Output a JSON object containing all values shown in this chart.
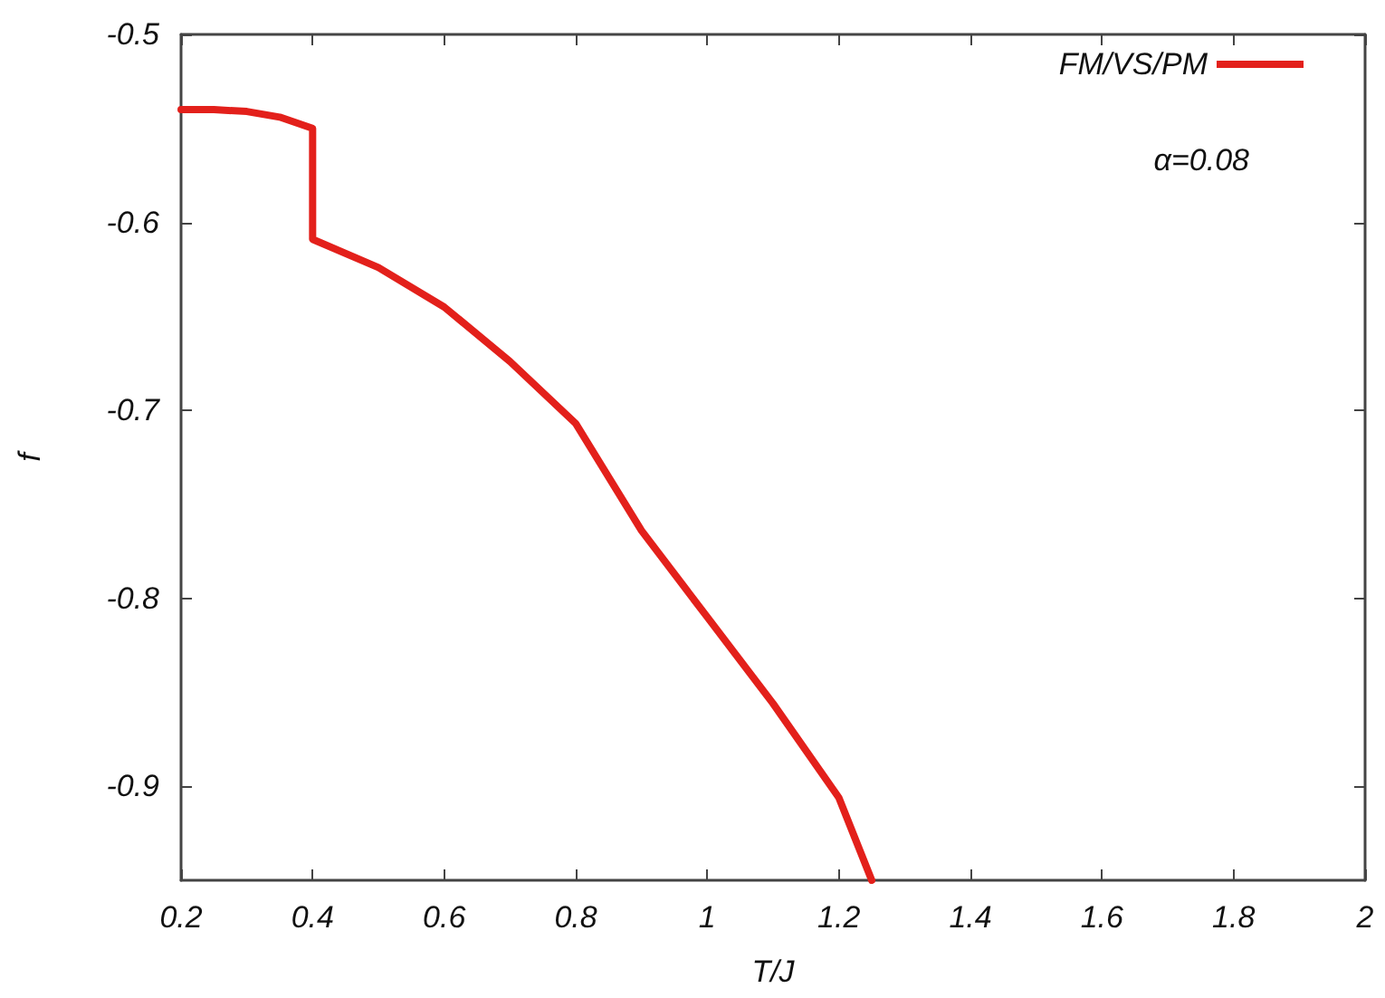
{
  "chart_data": {
    "type": "line",
    "xlabel": "T/J",
    "ylabel": "f",
    "annotations": [
      "α=0.08"
    ],
    "xlim": [
      0.2,
      2
    ],
    "xticks": [
      0.2,
      0.4,
      0.6,
      0.8,
      1,
      1.2,
      1.4,
      1.6,
      1.8,
      2
    ],
    "ylim": [
      -0.95,
      -0.5
    ],
    "yticks": [
      -0.9,
      -0.8,
      -0.7,
      -0.6,
      -0.5
    ],
    "grid": false,
    "legend": "top right",
    "marker": "none",
    "line_style": "solid",
    "series": [
      {
        "name": "FM/VS/PM",
        "color": "#e3201b",
        "x": [
          0.2,
          0.25,
          0.3,
          0.35,
          0.4,
          0.4,
          0.5,
          0.6,
          0.7,
          0.8,
          0.9,
          1,
          1.1,
          1.2,
          1.25
        ],
        "values": [
          -0.54,
          -0.54,
          -0.541,
          -0.544,
          -0.55,
          -0.609,
          -0.624,
          -0.645,
          -0.674,
          -0.707,
          -0.764,
          -0.81,
          -0.856,
          -0.906,
          -0.95
        ]
      }
    ]
  }
}
